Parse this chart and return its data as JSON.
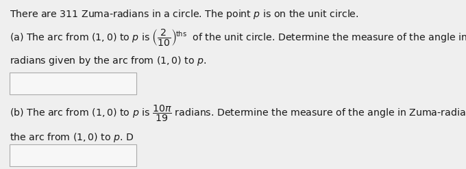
{
  "bg_color": "#efefef",
  "box_facecolor": "#f7f7f7",
  "box_edgecolor": "#aaaaaa",
  "text_color": "#1a1a1a",
  "title_text": "There are 311 Zuma-radians in a circle. The point $p$ is on the unit circle.",
  "part_a_line1": "(a) The arc from $(1,0)$ to $p$ is $\\left(\\dfrac{2}{10}\\right)^{\\!\\text{ths}}$  of the unit circle. Determine the measure of the angle in Zuma-",
  "part_a_line2": "radians given by the arc from $(1,0)$ to $p$.",
  "part_b_line1": "(b) The arc from $(1,0)$ to $p$ is $\\dfrac{10\\pi}{19}$ radians. Determine the measure of the angle in Zuma-radians given by",
  "part_b_line2": "the arc from $(1,0)$ to $p$. D",
  "fontsize": 10.2
}
